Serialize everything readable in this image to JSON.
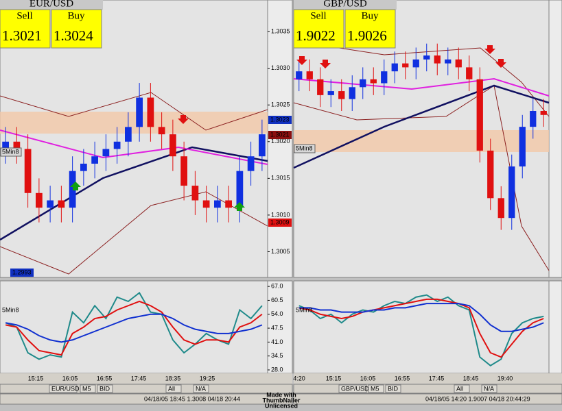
{
  "panels": [
    {
      "symbol": "EUR/USD",
      "sell": {
        "label": "Sell",
        "price": "1.3021"
      },
      "buy": {
        "label": "Buy",
        "price": "1.3024"
      },
      "indicator_label": "5Min8",
      "osc_label": "5Min8",
      "price_chart": {
        "type": "candlestick",
        "ylim": [
          1.30015,
          1.30393
        ],
        "yticks": [
          1.3035,
          {
            "value": 1.303,
            "label": "1.3030"
          },
          1.3025,
          {
            "value": 1.302,
            "label": "1.3020"
          },
          1.3015,
          {
            "value": 1.301,
            "label": "1.3010"
          },
          1.3005
        ],
        "open": [
          1.3019,
          1.302,
          1.3019,
          1.3013,
          1.3011,
          1.3012,
          1.3011,
          1.3016,
          1.3017,
          1.3018,
          1.3019,
          1.302,
          1.3022,
          1.3026,
          1.3022,
          1.3021,
          1.3018,
          1.3014,
          1.3012,
          1.3011,
          1.3012,
          1.3011,
          1.3016,
          1.3018
        ],
        "high": [
          1.3022,
          1.3022,
          1.3021,
          1.3015,
          1.3014,
          1.3014,
          1.3018,
          1.3019,
          1.302,
          1.3021,
          1.3022,
          1.3024,
          1.3028,
          1.3028,
          1.3024,
          1.3023,
          1.302,
          1.3016,
          1.3014,
          1.3014,
          1.3014,
          1.3018,
          1.302,
          1.3023
        ],
        "low": [
          1.3017,
          1.3017,
          1.3011,
          1.3009,
          1.3009,
          1.3009,
          1.3009,
          1.3014,
          1.3015,
          1.3016,
          1.3017,
          1.3018,
          1.302,
          1.302,
          1.3019,
          1.3016,
          1.3012,
          1.301,
          1.3009,
          1.3009,
          1.3009,
          1.3009,
          1.3014,
          1.3016
        ],
        "close": [
          1.302,
          1.3019,
          1.3013,
          1.3011,
          1.3012,
          1.3011,
          1.3016,
          1.3017,
          1.3018,
          1.3019,
          1.302,
          1.3022,
          1.3026,
          1.3022,
          1.3021,
          1.3018,
          1.3014,
          1.3012,
          1.3011,
          1.3012,
          1.3011,
          1.3016,
          1.3018,
          1.3021
        ]
      },
      "price_tags": [
        "1.3023",
        "1.3021",
        "1.3009",
        "1.2993"
      ],
      "oscillator": {
        "type": "line",
        "ylim": [
          26.4,
          69.6
        ],
        "yticks": [
          {
            "value": 67,
            "label": "67.0"
          },
          60.5,
          {
            "value": 54,
            "label": "54.0"
          },
          47.5,
          {
            "value": 41,
            "label": "41.0"
          },
          34.5,
          {
            "value": 28,
            "label": "28.0"
          }
        ],
        "series": [
          {
            "color": "#1f8a8a",
            "values": [
              50,
              48,
              36,
              33,
              35,
              34,
              55,
              50,
              58,
              52,
              62,
              60,
              64,
              55,
              54,
              42,
              36,
              40,
              45,
              42,
              40,
              56,
              52,
              58
            ]
          },
          {
            "color": "#e01010",
            "values": [
              49,
              48,
              42,
              37,
              36,
              35,
              45,
              48,
              52,
              53,
              56,
              58,
              60,
              58,
              55,
              48,
              42,
              40,
              42,
              42,
              41,
              48,
              50,
              54
            ]
          },
          {
            "color": "#1030d0",
            "values": [
              50,
              49,
              47,
              44,
              42,
              41,
              42,
              44,
              46,
              48,
              50,
              52,
              53,
              54,
              54,
              52,
              49,
              47,
              46,
              45,
              45,
              46,
              47,
              49
            ]
          }
        ]
      },
      "time_labels": [
        "15:15",
        "16:05",
        "16:55",
        "17:45",
        "18:35",
        "19:25"
      ],
      "toolbar": [
        "EUR/USD",
        "M5",
        "BID",
        "All",
        "N/A"
      ],
      "status": "04/18/05 18:45  1.3008 04/18 20:44"
    },
    {
      "symbol": "GBP/USD",
      "sell": {
        "label": "Sell",
        "price": "1.9022"
      },
      "buy": {
        "label": "Buy",
        "price": "1.9026"
      },
      "indicator_label": "5Min8",
      "osc_label": "5Min8",
      "price_chart": {
        "type": "candlestick",
        "ylim": [
          1.898,
          1.905
        ],
        "open": [
          1.903,
          1.9032,
          1.903,
          1.9026,
          1.9027,
          1.9025,
          1.9028,
          1.903,
          1.9029,
          1.9032,
          1.9034,
          1.9033,
          1.9035,
          1.9036,
          1.9034,
          1.9035,
          1.9033,
          1.903,
          1.9012,
          1.9,
          1.8995,
          1.9008,
          1.9018,
          1.9022
        ],
        "high": [
          1.9035,
          1.9035,
          1.9033,
          1.903,
          1.903,
          1.9031,
          1.9033,
          1.9033,
          1.9035,
          1.9037,
          1.9037,
          1.9038,
          1.9039,
          1.9039,
          1.9038,
          1.9038,
          1.9036,
          1.9033,
          1.9015,
          1.9003,
          1.9011,
          1.9021,
          1.9025,
          1.9025
        ],
        "low": [
          1.9027,
          1.9027,
          1.9023,
          1.9023,
          1.9022,
          1.9022,
          1.9025,
          1.9026,
          1.9026,
          1.9029,
          1.903,
          1.903,
          1.9032,
          1.9031,
          1.9031,
          1.903,
          1.9027,
          1.9009,
          1.8997,
          1.8992,
          1.8992,
          1.9005,
          1.9015,
          1.9018
        ],
        "close": [
          1.9032,
          1.903,
          1.9026,
          1.9027,
          1.9025,
          1.9028,
          1.903,
          1.9029,
          1.9032,
          1.9034,
          1.9033,
          1.9035,
          1.9036,
          1.9034,
          1.9035,
          1.9033,
          1.903,
          1.9012,
          1.9,
          1.8995,
          1.9008,
          1.9018,
          1.9022,
          1.9021
        ]
      },
      "oscillator": {
        "type": "line",
        "ylim": [
          26.4,
          69.6
        ],
        "series": [
          {
            "color": "#1f8a8a",
            "values": [
              58,
              56,
              52,
              54,
              50,
              54,
              56,
              55,
              58,
              60,
              59,
              62,
              63,
              60,
              62,
              58,
              56,
              34,
              30,
              33,
              45,
              50,
              52,
              53
            ]
          },
          {
            "color": "#e01010",
            "values": [
              57,
              56,
              54,
              53,
              52,
              53,
              55,
              56,
              57,
              58,
              59,
              60,
              61,
              61,
              60,
              59,
              57,
              45,
              36,
              34,
              40,
              46,
              50,
              52
            ]
          },
          {
            "color": "#1030d0",
            "values": [
              57,
              57,
              56,
              56,
              55,
              55,
              55,
              56,
              56,
              57,
              57,
              58,
              59,
              59,
              59,
              59,
              58,
              54,
              49,
              46,
              46,
              47,
              48,
              50
            ]
          }
        ]
      },
      "time_labels": [
        "4:20",
        "15:15",
        "16:05",
        "16:55",
        "17:45",
        "18:45",
        "19:40"
      ],
      "toolbar": [
        "GBP/USD",
        "M5",
        "BID",
        "All",
        "N/A"
      ],
      "status": "04/18/05 14:20  1.9007 04/18 20:44:29"
    }
  ],
  "watermark": [
    "Made with",
    "ThumbNailer",
    "Unlicensed"
  ]
}
